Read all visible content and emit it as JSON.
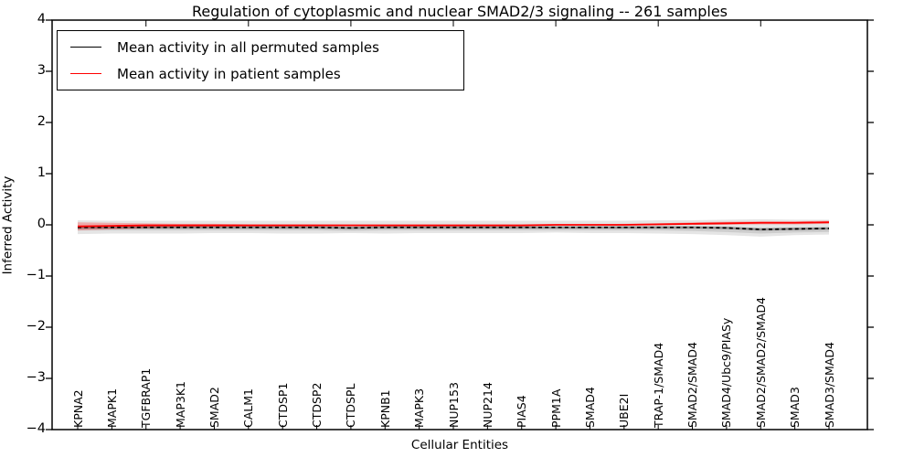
{
  "chart_data": {
    "type": "line",
    "title": "Regulation of cytoplasmic and nuclear SMAD2/3 signaling -- 261 samples",
    "xlabel": "Cellular Entities",
    "ylabel": "Inferred Activity",
    "ylim": [
      -4,
      4
    ],
    "yticks": [
      4,
      3,
      2,
      1,
      0,
      -1,
      -2,
      -3,
      -4
    ],
    "grid": false,
    "legend_position": "upper left",
    "categories": [
      "KPNA2",
      "MAPK1",
      "TGFBRAP1",
      "MAP3K1",
      "SMAD2",
      "CALM1",
      "CTDSP1",
      "CTDSP2",
      "CTDSPL",
      "KPNB1",
      "MAPK3",
      "NUP153",
      "NUP214",
      "PIAS4",
      "PPM1A",
      "SMAD4",
      "UBE2I",
      "TRAP-1/SMAD4",
      "SMAD2/SMAD4",
      "SMAD4/Ubc9/PIASy",
      "SMAD2/SMAD2/SMAD4",
      "SMAD3",
      "SMAD3/SMAD4"
    ],
    "series": [
      {
        "name": "Mean activity in all permuted samples",
        "color": "#000000",
        "line_style": "dashed",
        "values": [
          -0.05,
          -0.05,
          -0.05,
          -0.05,
          -0.05,
          -0.05,
          -0.05,
          -0.05,
          -0.06,
          -0.05,
          -0.05,
          -0.05,
          -0.05,
          -0.05,
          -0.05,
          -0.05,
          -0.05,
          -0.05,
          -0.05,
          -0.06,
          -0.09,
          -0.08,
          -0.07
        ]
      },
      {
        "name": "Mean activity in patient samples",
        "color": "#ff0000",
        "line_style": "solid",
        "values": [
          -0.03,
          -0.02,
          -0.01,
          -0.01,
          -0.01,
          -0.01,
          -0.01,
          -0.01,
          -0.01,
          -0.01,
          -0.01,
          -0.01,
          -0.01,
          -0.01,
          0.0,
          0.0,
          0.0,
          0.01,
          0.02,
          0.03,
          0.04,
          0.04,
          0.05
        ]
      }
    ],
    "bands": [
      {
        "name": "permuted-std-outer",
        "color": "#000000",
        "opacity": 0.1,
        "upper": [
          0.09,
          0.08,
          0.08,
          0.08,
          0.08,
          0.08,
          0.08,
          0.08,
          0.08,
          0.08,
          0.08,
          0.08,
          0.08,
          0.08,
          0.08,
          0.08,
          0.08,
          0.09,
          0.09,
          0.1,
          0.11,
          0.1,
          0.1
        ],
        "lower": [
          -0.18,
          -0.17,
          -0.17,
          -0.17,
          -0.16,
          -0.16,
          -0.17,
          -0.17,
          -0.16,
          -0.17,
          -0.16,
          -0.16,
          -0.16,
          -0.16,
          -0.15,
          -0.16,
          -0.16,
          -0.17,
          -0.18,
          -0.2,
          -0.23,
          -0.2,
          -0.19
        ]
      },
      {
        "name": "permuted-std-inner",
        "color": "#000000",
        "opacity": 0.1,
        "upper": [
          -0.03,
          -0.03,
          -0.03,
          -0.03,
          -0.03,
          -0.03,
          -0.03,
          -0.03,
          -0.04,
          -0.03,
          -0.03,
          -0.03,
          -0.03,
          -0.03,
          -0.03,
          -0.03,
          -0.03,
          -0.03,
          -0.03,
          -0.04,
          -0.06,
          -0.05,
          -0.05
        ],
        "lower": [
          -0.11,
          -0.11,
          -0.11,
          -0.11,
          -0.11,
          -0.11,
          -0.11,
          -0.11,
          -0.12,
          -0.11,
          -0.11,
          -0.11,
          -0.11,
          -0.11,
          -0.11,
          -0.11,
          -0.11,
          -0.11,
          -0.12,
          -0.14,
          -0.17,
          -0.15,
          -0.14
        ]
      },
      {
        "name": "patient-std",
        "color": "#ff0000",
        "opacity": 0.25,
        "upper": [
          0.05,
          0.04,
          0.03,
          0.02,
          0.02,
          0.01,
          0.01,
          0.01,
          0.0,
          0.0,
          0.0,
          0.0,
          0.0,
          0.0,
          0.01,
          0.01,
          0.02,
          0.03,
          0.05,
          0.06,
          0.07,
          0.07,
          0.08
        ],
        "lower": [
          -0.11,
          -0.09,
          -0.07,
          -0.05,
          -0.04,
          -0.03,
          -0.03,
          -0.02,
          -0.02,
          -0.02,
          -0.02,
          -0.02,
          -0.02,
          -0.02,
          -0.01,
          -0.01,
          -0.01,
          -0.01,
          0.0,
          0.0,
          0.01,
          0.01,
          0.02
        ]
      }
    ]
  }
}
